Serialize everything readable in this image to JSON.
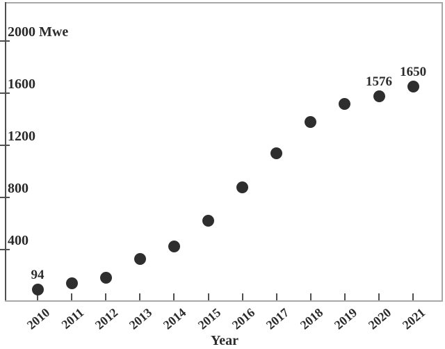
{
  "style": {
    "background": "#ffffff",
    "marker_color": "#2e2e2e",
    "text_color": "#2b2b2b",
    "axis_color": "#4f4f4f",
    "frame_color": "#a8a8a8"
  },
  "chart_data": {
    "type": "scatter",
    "title": "",
    "xlabel": "Year",
    "y_unit": "Mwe",
    "categories": [
      "2010",
      "2011",
      "2012",
      "2013",
      "2014",
      "2015",
      "2016",
      "2017",
      "2018",
      "2019",
      "2020",
      "2021"
    ],
    "values": [
      94,
      140,
      185,
      330,
      425,
      620,
      880,
      1140,
      1380,
      1520,
      1576,
      1650
    ],
    "annotated_points": [
      {
        "x": "2010",
        "label": "94"
      },
      {
        "x": "2020",
        "label": "1576"
      },
      {
        "x": "2021",
        "label": "1650"
      }
    ],
    "y_axis": {
      "ticks": [
        400,
        800,
        1200,
        1600,
        2000
      ],
      "tick_labels": [
        "400",
        "800",
        "1200",
        "1600",
        "2000 Mwe"
      ]
    },
    "ylim": [
      0,
      2300
    ],
    "grid": false,
    "legend": "none",
    "marker": "filled-circle"
  }
}
